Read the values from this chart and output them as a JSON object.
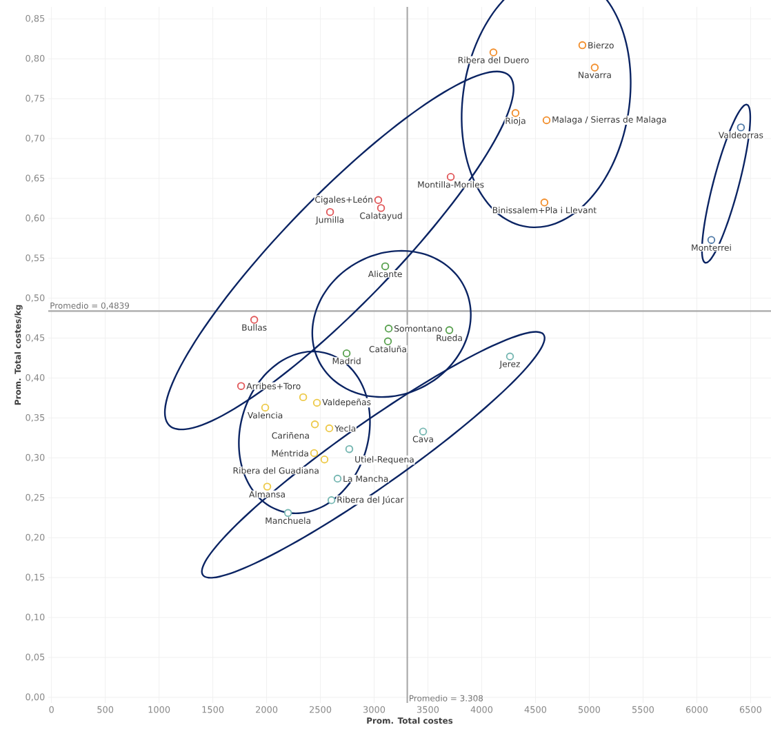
{
  "chart_data": {
    "type": "scatter",
    "xlabel": "Prom. Total costes",
    "ylabel": "Prom. Total costes/kg",
    "xlim": [
      -30,
      6690
    ],
    "ylim": [
      -0.007,
      0.865
    ],
    "xticks": [
      0,
      500,
      1000,
      1500,
      2000,
      2500,
      3000,
      3500,
      4000,
      4500,
      5000,
      5500,
      6000,
      6500
    ],
    "yticks": [
      {
        "value": 0,
        "label": "0,00"
      },
      {
        "value": 0.05,
        "label": "0,05"
      },
      {
        "value": 0.1,
        "label": "0,10"
      },
      {
        "value": 0.15,
        "label": "0,15"
      },
      {
        "value": 0.2,
        "label": "0,20"
      },
      {
        "value": 0.25,
        "label": "0,25"
      },
      {
        "value": 0.3,
        "label": "0,30"
      },
      {
        "value": 0.35,
        "label": "0,35"
      },
      {
        "value": 0.4,
        "label": "0,40"
      },
      {
        "value": 0.45,
        "label": "0,45"
      },
      {
        "value": 0.5,
        "label": "0,50"
      },
      {
        "value": 0.55,
        "label": "0,55"
      },
      {
        "value": 0.6,
        "label": "0,60"
      },
      {
        "value": 0.65,
        "label": "0,65"
      },
      {
        "value": 0.7,
        "label": "0,70"
      },
      {
        "value": 0.75,
        "label": "0,75"
      },
      {
        "value": 0.8,
        "label": "0,80"
      },
      {
        "value": 0.85,
        "label": "0,85"
      }
    ],
    "grid": true,
    "marker": "circle",
    "series": [
      {
        "color": "#e15759",
        "x": [
          3712,
          3038,
          3064,
          2590,
          1885,
          1763
        ],
        "values": [
          0.652,
          0.623,
          0.613,
          0.608,
          0.473,
          0.39
        ]
      },
      {
        "color": "#f28e2b",
        "x": [
          4936,
          4109,
          5051,
          4314,
          4603,
          4583
        ],
        "values": [
          0.817,
          0.808,
          0.789,
          0.732,
          0.723,
          0.62
        ]
      },
      {
        "color": "#4e79a7",
        "x": [
          6410,
          6135
        ],
        "values": [
          0.714,
          0.573
        ]
      },
      {
        "color": "#59a14f",
        "x": [
          3103,
          3135,
          3128,
          2744,
          3699
        ],
        "values": [
          0.54,
          0.462,
          0.446,
          0.431,
          0.46
        ]
      },
      {
        "color": "#76b7b2",
        "x": [
          4263,
          3455,
          2769,
          2660,
          2603,
          2199
        ],
        "values": [
          0.427,
          0.333,
          0.311,
          0.274,
          0.247,
          0.231
        ]
      },
      {
        "color": "#edc948",
        "x": [
          1987,
          2340,
          2468,
          2449,
          2583,
          2442,
          2538,
          2006
        ],
        "values": [
          0.363,
          0.376,
          0.369,
          0.342,
          0.337,
          0.306,
          0.298,
          0.264
        ]
      }
    ],
    "ref_lines": [
      {
        "axis": "x",
        "value": 3308,
        "label": "Promedio = 3.308",
        "color": "#a8a8a8"
      },
      {
        "axis": "y",
        "value": 0.4839,
        "label": "Promedio = 0,4839",
        "color": "#a8a8a8"
      }
    ],
    "annotations": [
      {
        "text": "Montilla-Moriles",
        "x": 3712,
        "y": 0.652
      },
      {
        "text": "Cigales+León",
        "x": 3038,
        "y": 0.623
      },
      {
        "text": "Calatayud",
        "x": 3064,
        "y": 0.613
      },
      {
        "text": "Jumilla",
        "x": 2590,
        "y": 0.608
      },
      {
        "text": "Bullas",
        "x": 1885,
        "y": 0.473
      },
      {
        "text": "Arribes+Toro",
        "x": 1763,
        "y": 0.39
      },
      {
        "text": "Bierzo",
        "x": 4936,
        "y": 0.817
      },
      {
        "text": "Ribera del Duero",
        "x": 4109,
        "y": 0.808
      },
      {
        "text": "Navarra",
        "x": 5051,
        "y": 0.789
      },
      {
        "text": "Rioja",
        "x": 4314,
        "y": 0.732
      },
      {
        "text": "Malaga / Sierras de Malaga",
        "x": 4603,
        "y": 0.723
      },
      {
        "text": "Binissalem+Pla i Llevant",
        "x": 4583,
        "y": 0.62
      },
      {
        "text": "Valdeorras",
        "x": 6410,
        "y": 0.714
      },
      {
        "text": "Monterrei",
        "x": 6135,
        "y": 0.573
      },
      {
        "text": "Alicante",
        "x": 3103,
        "y": 0.54
      },
      {
        "text": "Somontano",
        "x": 3135,
        "y": 0.462
      },
      {
        "text": "Cataluña",
        "x": 3128,
        "y": 0.446
      },
      {
        "text": "Madrid",
        "x": 2744,
        "y": 0.431
      },
      {
        "text": "Rueda",
        "x": 3699,
        "y": 0.46
      },
      {
        "text": "Jerez",
        "x": 4263,
        "y": 0.427
      },
      {
        "text": "Cava",
        "x": 3455,
        "y": 0.333
      },
      {
        "text": "Utiel-Requena",
        "x": 2769,
        "y": 0.311
      },
      {
        "text": "La Mancha",
        "x": 2660,
        "y": 0.274
      },
      {
        "text": "Ribera del Júcar",
        "x": 2603,
        "y": 0.247
      },
      {
        "text": "Manchuela",
        "x": 2199,
        "y": 0.231
      },
      {
        "text": "Valencia",
        "x": 1987,
        "y": 0.363
      },
      {
        "text": "Valdepeñas",
        "x": 2468,
        "y": 0.369
      },
      {
        "text": "Cariñena",
        "x": 2449,
        "y": 0.342
      },
      {
        "text": "Yecla",
        "x": 2583,
        "y": 0.337
      },
      {
        "text": "Méntrida",
        "x": 2442,
        "y": 0.306
      },
      {
        "text": "Ribera del Guadiana",
        "x": 2538,
        "y": 0.298
      },
      {
        "text": "Almansa",
        "x": 2006,
        "y": 0.264
      }
    ]
  }
}
